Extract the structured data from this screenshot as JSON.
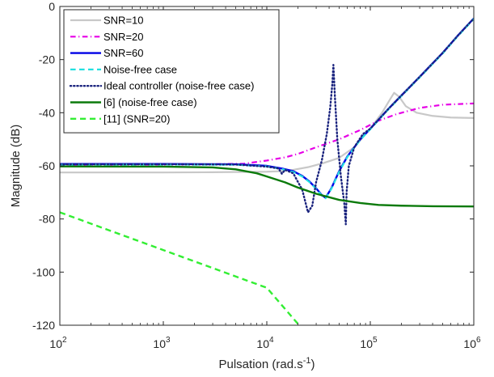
{
  "chart_data": {
    "type": "line",
    "title": "",
    "xlabel": "Pulsation (rad.s",
    "xlabel_superscript": "-1",
    "xlabel_suffix": ")",
    "ylabel": "Magnitude (dB)",
    "xscale": "log",
    "xlim": [
      100,
      1000000
    ],
    "ylim": [
      -120,
      0
    ],
    "grid": false,
    "legend_position": "top-left",
    "x_ticks": [
      {
        "base": "10",
        "exp": "2",
        "value": 100
      },
      {
        "base": "10",
        "exp": "3",
        "value": 1000
      },
      {
        "base": "10",
        "exp": "4",
        "value": 10000
      },
      {
        "base": "10",
        "exp": "5",
        "value": 100000
      },
      {
        "base": "10",
        "exp": "6",
        "value": 1000000
      }
    ],
    "y_ticks": [
      {
        "label": "0",
        "value": 0
      },
      {
        "label": "-20",
        "value": -20
      },
      {
        "label": "-40",
        "value": -40
      },
      {
        "label": "-60",
        "value": -60
      },
      {
        "label": "-80",
        "value": -80
      },
      {
        "label": "-100",
        "value": -100
      },
      {
        "label": "-120",
        "value": -120
      }
    ],
    "series": [
      {
        "name": "SNR=10",
        "color": "#c8c8c8",
        "dash": "solid",
        "width": 2.2,
        "points": [
          [
            100,
            -62.5
          ],
          [
            1000,
            -62.5
          ],
          [
            3000,
            -62.4
          ],
          [
            10000,
            -62.2
          ],
          [
            14000,
            -62
          ],
          [
            18000,
            -61.5
          ],
          [
            25000,
            -60.5
          ],
          [
            35000,
            -59
          ],
          [
            50000,
            -57
          ],
          [
            70000,
            -53
          ],
          [
            100000,
            -46
          ],
          [
            130000,
            -40
          ],
          [
            155000,
            -35
          ],
          [
            170000,
            -32.5
          ],
          [
            190000,
            -34
          ],
          [
            220000,
            -37.5
          ],
          [
            280000,
            -40
          ],
          [
            400000,
            -41.2
          ],
          [
            600000,
            -41.8
          ],
          [
            1000000,
            -42
          ]
        ]
      },
      {
        "name": "SNR=20",
        "color": "#e600e6",
        "dash": "dashdot",
        "width": 2.2,
        "points": [
          [
            100,
            -59.5
          ],
          [
            1000,
            -59.5
          ],
          [
            3000,
            -59.4
          ],
          [
            6000,
            -59.2
          ],
          [
            10000,
            -58
          ],
          [
            15000,
            -56.8
          ],
          [
            20000,
            -55.5
          ],
          [
            30000,
            -53
          ],
          [
            50000,
            -50
          ],
          [
            80000,
            -46.5
          ],
          [
            120000,
            -43
          ],
          [
            180000,
            -40.5
          ],
          [
            300000,
            -38.2
          ],
          [
            500000,
            -37
          ],
          [
            1000000,
            -36.5
          ]
        ]
      },
      {
        "name": "SNR=60",
        "color": "#0000e6",
        "dash": "solid",
        "width": 2.4,
        "points": [
          [
            100,
            -59.3
          ],
          [
            1000,
            -59.3
          ],
          [
            5000,
            -59.4
          ],
          [
            10000,
            -60
          ],
          [
            14000,
            -61
          ],
          [
            18000,
            -62
          ],
          [
            22000,
            -63.8
          ],
          [
            26000,
            -66
          ],
          [
            30000,
            -68.5
          ],
          [
            34000,
            -71
          ],
          [
            37000,
            -72
          ],
          [
            42000,
            -68.5
          ],
          [
            50000,
            -62
          ],
          [
            60000,
            -56.5
          ],
          [
            80000,
            -50
          ],
          [
            100000,
            -46
          ],
          [
            150000,
            -38.5
          ],
          [
            200000,
            -33.5
          ],
          [
            300000,
            -26.5
          ],
          [
            500000,
            -17.5
          ],
          [
            700000,
            -11
          ],
          [
            1000000,
            -4.5
          ]
        ]
      },
      {
        "name": "Noise-free case",
        "color": "#22e0e0",
        "dash": "dashed",
        "width": 2.2,
        "points": [
          [
            100,
            -59.5
          ],
          [
            1000,
            -59.5
          ],
          [
            5000,
            -59.6
          ],
          [
            10000,
            -60.2
          ],
          [
            14000,
            -61.2
          ],
          [
            18000,
            -62.3
          ],
          [
            22000,
            -64
          ],
          [
            26000,
            -66.2
          ],
          [
            30000,
            -68.7
          ],
          [
            34000,
            -71.2
          ],
          [
            37000,
            -72.2
          ],
          [
            42000,
            -68.7
          ],
          [
            50000,
            -62.3
          ],
          [
            60000,
            -56.7
          ],
          [
            80000,
            -50.2
          ],
          [
            100000,
            -46.2
          ],
          [
            150000,
            -38.7
          ],
          [
            200000,
            -33.7
          ],
          [
            300000,
            -26.7
          ],
          [
            500000,
            -17.7
          ],
          [
            700000,
            -11.2
          ],
          [
            1000000,
            -4.7
          ]
        ]
      },
      {
        "name": "Ideal controller (noise-free case)",
        "color": "#1a237e",
        "dash": "dotted",
        "width": 2.4,
        "points": [
          [
            100,
            -59.4
          ],
          [
            1000,
            -59.4
          ],
          [
            5000,
            -59.5
          ],
          [
            10000,
            -60.3
          ],
          [
            13000,
            -61
          ],
          [
            14000,
            -63
          ],
          [
            15000,
            -61.5
          ],
          [
            18000,
            -62.8
          ],
          [
            22000,
            -69
          ],
          [
            25000,
            -77.5
          ],
          [
            27500,
            -75
          ],
          [
            30000,
            -66
          ],
          [
            34000,
            -58
          ],
          [
            38000,
            -48
          ],
          [
            41000,
            -38
          ],
          [
            43000,
            -29
          ],
          [
            44000,
            -22
          ],
          [
            45500,
            -34
          ],
          [
            48000,
            -50
          ],
          [
            52000,
            -64
          ],
          [
            56000,
            -74
          ],
          [
            58000,
            -82
          ],
          [
            59000,
            -70
          ],
          [
            62000,
            -60
          ],
          [
            70000,
            -53
          ],
          [
            85000,
            -48
          ],
          [
            100000,
            -46
          ],
          [
            150000,
            -38.5
          ],
          [
            200000,
            -33.5
          ],
          [
            300000,
            -26.5
          ],
          [
            500000,
            -17.5
          ],
          [
            700000,
            -11
          ],
          [
            1000000,
            -4.5
          ]
        ]
      },
      {
        "name": "[6] (noise-free case)",
        "color": "#0b7a0b",
        "dash": "solid",
        "width": 2.4,
        "points": [
          [
            100,
            -60.2
          ],
          [
            1000,
            -60.3
          ],
          [
            3000,
            -60.6
          ],
          [
            5000,
            -61.3
          ],
          [
            8000,
            -62.8
          ],
          [
            10000,
            -64
          ],
          [
            15000,
            -66.2
          ],
          [
            20000,
            -68.2
          ],
          [
            30000,
            -70.5
          ],
          [
            50000,
            -72.8
          ],
          [
            80000,
            -74
          ],
          [
            120000,
            -74.7
          ],
          [
            200000,
            -75
          ],
          [
            400000,
            -75.2
          ],
          [
            1000000,
            -75.3
          ]
        ]
      },
      {
        "name": "[11] (SNR=20)",
        "color": "#33ee33",
        "dash": "dashed",
        "width": 2.4,
        "points": [
          [
            100,
            -77.5
          ],
          [
            1000,
            -91.7
          ],
          [
            10000,
            -105.9
          ],
          [
            20000,
            -119.5
          ]
        ]
      }
    ]
  }
}
